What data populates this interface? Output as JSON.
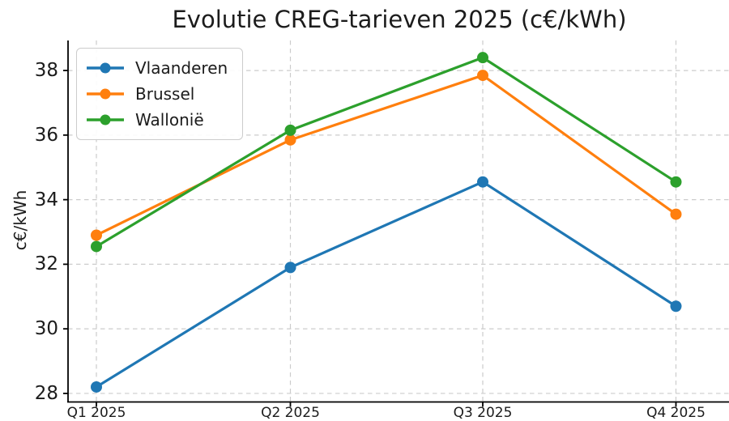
{
  "chart_data": {
    "type": "line",
    "title": "Evolutie CREG-tarieven 2025 (c€/kWh)",
    "xlabel": "",
    "ylabel": "c€/kWh",
    "categories": [
      "Q1 2025",
      "Q2 2025",
      "Q3 2025",
      "Q4 2025"
    ],
    "series": [
      {
        "name": "Vlaanderen",
        "color": "#1f77b4",
        "values": [
          28.2,
          31.9,
          34.55,
          30.7
        ]
      },
      {
        "name": "Brussel",
        "color": "#ff7f0e",
        "values": [
          32.9,
          35.85,
          37.85,
          33.55
        ]
      },
      {
        "name": "Wallonië",
        "color": "#2ca02c",
        "values": [
          32.55,
          36.15,
          38.4,
          34.55
        ]
      }
    ],
    "yticks": [
      28,
      30,
      32,
      34,
      36,
      38
    ],
    "ylim": [
      27.76,
      38.93
    ],
    "grid": true,
    "grid_style": "dashed",
    "legend_position": "upper left",
    "colors": {
      "grid": "#cccccc",
      "spine": "#000000",
      "text": "#1c1c1c",
      "legend_border": "#cccccc",
      "legend_bg": "#ffffff"
    }
  }
}
